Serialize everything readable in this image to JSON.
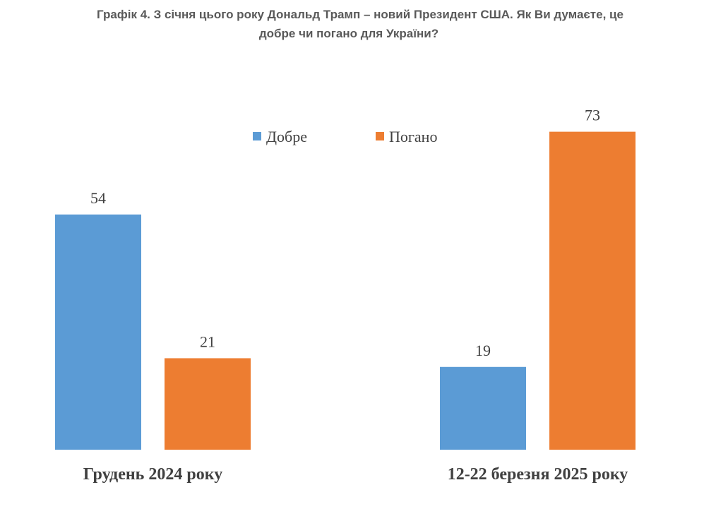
{
  "chart_data": {
    "type": "bar",
    "title": [
      "Графік 4. З січня цього року Дональд Трамп – новий Президент США. Як Ви думаєте, це",
      "добре чи погано для України?"
    ],
    "categories": [
      "Грудень 2024 року",
      "12-22 березня 2025 року"
    ],
    "series": [
      {
        "name": "Добре",
        "color": "#5b9bd5",
        "values": [
          54,
          19
        ]
      },
      {
        "name": "Погано",
        "color": "#ed7d31",
        "values": [
          21,
          73
        ]
      }
    ]
  }
}
